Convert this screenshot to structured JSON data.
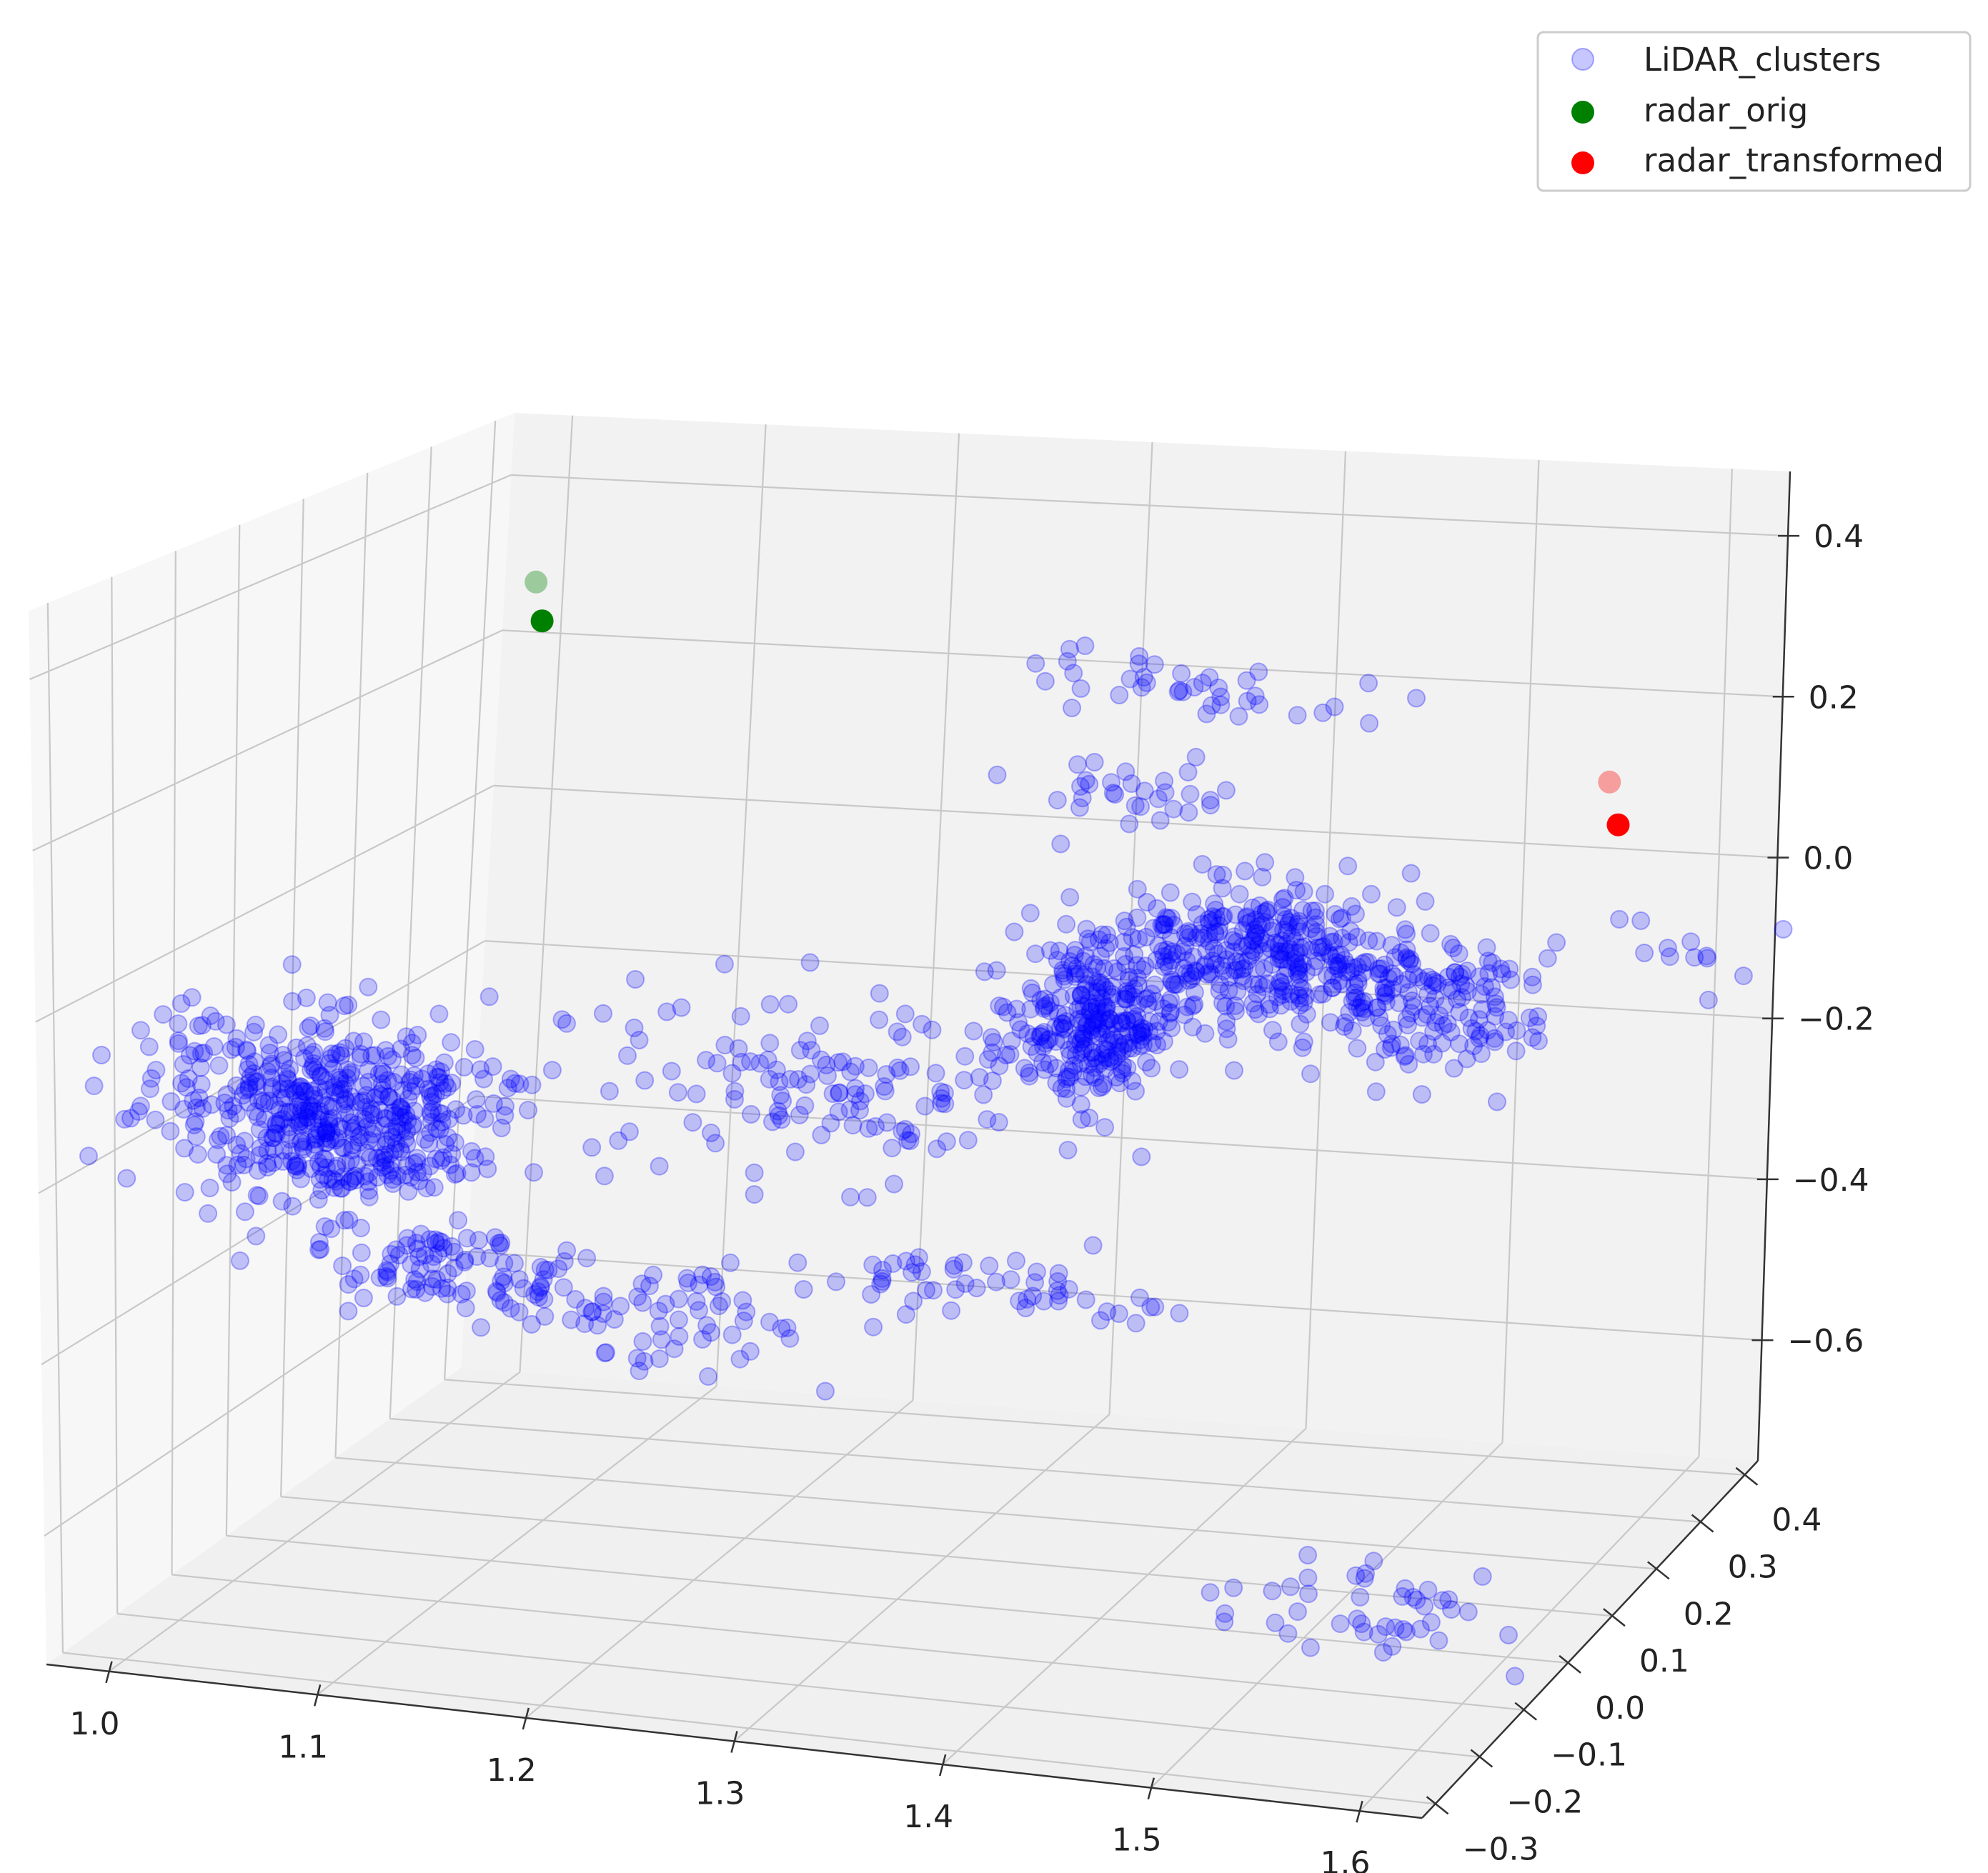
{
  "chart_data": {
    "type": "scatter",
    "projection": "3d",
    "title": "",
    "xlabel": "",
    "ylabel": "",
    "zlabel": "",
    "grid": true,
    "legend_placement": "top-right",
    "xlim": [
      0.97,
      1.63
    ],
    "ylim": [
      -0.33,
      0.43
    ],
    "zlim": [
      -0.75,
      0.48
    ],
    "x_ticks": [
      "1.0",
      "1.1",
      "1.2",
      "1.3",
      "1.4",
      "1.5",
      "1.6"
    ],
    "y_ticks": [
      "−0.3",
      "−0.2",
      "−0.1",
      "0.0",
      "0.1",
      "0.2",
      "0.3",
      "0.4"
    ],
    "z_ticks": [
      "−0.6",
      "−0.4",
      "−0.2",
      "0.0",
      "0.2",
      "0.4"
    ],
    "series": [
      {
        "name": "LiDAR_clusters",
        "color": "#0000ff",
        "alpha": 0.22,
        "clusters": [
          {
            "center": [
              1.06,
              -0.15,
              -0.15
            ],
            "spread": [
              0.07,
              0.05,
              0.09
            ],
            "count": 520
          },
          {
            "center": [
              1.1,
              -0.1,
              -0.35
            ],
            "spread": [
              0.05,
              0.04,
              0.05
            ],
            "count": 90
          },
          {
            "center": [
              1.2,
              -0.05,
              -0.4
            ],
            "spread": [
              0.06,
              0.03,
              0.05
            ],
            "count": 70
          },
          {
            "center": [
              1.25,
              0.05,
              -0.15
            ],
            "spread": [
              0.1,
              0.06,
              0.08
            ],
            "count": 140
          },
          {
            "center": [
              1.37,
              0.1,
              -0.08
            ],
            "spread": [
              0.03,
              0.04,
              0.08
            ],
            "count": 260
          },
          {
            "center": [
              1.45,
              0.12,
              0.02
            ],
            "spread": [
              0.07,
              0.05,
              0.07
            ],
            "count": 380
          },
          {
            "center": [
              1.53,
              0.15,
              -0.05
            ],
            "spread": [
              0.04,
              0.04,
              0.07
            ],
            "count": 110
          },
          {
            "center": [
              1.4,
              0.2,
              0.3
            ],
            "spread": [
              0.08,
              0.03,
              0.03
            ],
            "count": 40
          },
          {
            "center": [
              1.37,
              0.18,
              0.18
            ],
            "spread": [
              0.04,
              0.02,
              0.03
            ],
            "count": 30
          },
          {
            "center": [
              1.35,
              0.0,
              -0.35
            ],
            "spread": [
              0.07,
              0.03,
              0.03
            ],
            "count": 50
          },
          {
            "center": [
              1.52,
              0.02,
              -0.72
            ],
            "spread": [
              0.06,
              0.05,
              0.03
            ],
            "count": 45
          },
          {
            "center": [
              1.63,
              0.2,
              0.02
            ],
            "spread": [
              0.06,
              0.05,
              0.04
            ],
            "count": 14
          }
        ]
      },
      {
        "name": "radar_orig",
        "color": "#008000",
        "points": [
          [
            1.03,
            0.3,
            0.27
          ],
          [
            1.02,
            0.32,
            0.31
          ]
        ]
      },
      {
        "name": "radar_transformed",
        "color": "#ff0000",
        "points": [
          [
            1.58,
            0.3,
            0.11
          ],
          [
            1.57,
            0.32,
            0.15
          ]
        ]
      }
    ]
  }
}
